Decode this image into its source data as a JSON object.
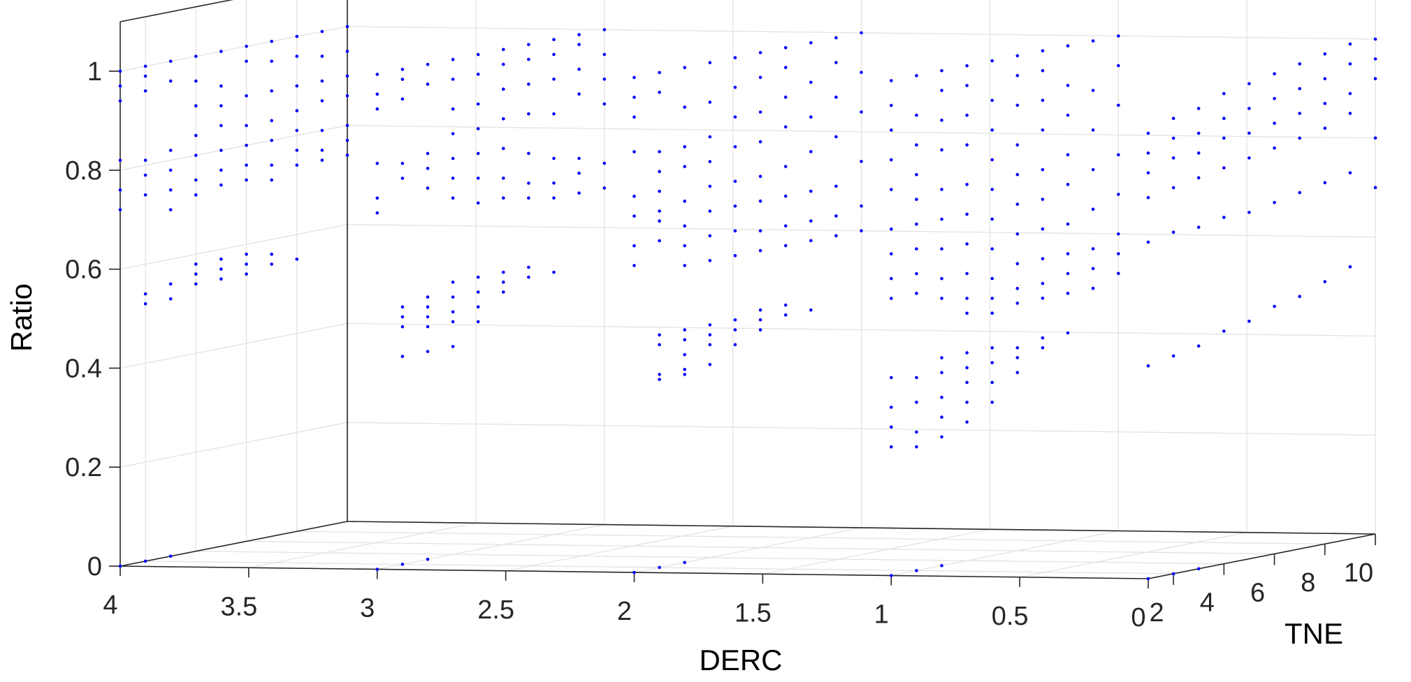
{
  "chart_data": {
    "type": "scatter3d",
    "title": "",
    "xlabel": "DERC",
    "ylabel": "TNE",
    "zlabel": "Ratio",
    "xlim": [
      0,
      4
    ],
    "ylim": [
      1,
      10
    ],
    "zlim": [
      0,
      1.1
    ],
    "x_ticks": [
      "0",
      "0.5",
      "1",
      "1.5",
      "2",
      "2.5",
      "3",
      "3.5",
      "4"
    ],
    "y_ticks": [
      "2",
      "4",
      "6",
      "8",
      "10"
    ],
    "z_ticks": [
      "0",
      "0.2",
      "0.4",
      "0.6",
      "0.8",
      "1"
    ],
    "marker_color": "#0000ff",
    "grid": true,
    "groups": [
      {
        "derc": 4,
        "zero_tne": [
          1,
          2,
          3
        ],
        "columns": [
          {
            "tne": 1,
            "z": [
              0.72,
              0.76,
              0.82,
              0.94,
              0.97,
              1.0
            ]
          },
          {
            "tne": 2,
            "z": [
              0.52,
              0.54,
              0.74,
              0.78,
              0.81,
              0.95,
              0.98,
              1.0
            ]
          },
          {
            "tne": 3,
            "z": [
              0.52,
              0.55,
              0.7,
              0.74,
              0.78,
              0.82,
              0.96,
              1.0
            ]
          },
          {
            "tne": 4,
            "z": [
              0.54,
              0.56,
              0.58,
              0.72,
              0.75,
              0.8,
              0.84,
              0.9,
              0.95,
              1.0
            ]
          },
          {
            "tne": 5,
            "z": [
              0.54,
              0.56,
              0.58,
              0.73,
              0.76,
              0.8,
              0.85,
              0.89,
              0.93,
              1.0
            ]
          },
          {
            "tne": 6,
            "z": [
              0.54,
              0.56,
              0.58,
              0.73,
              0.76,
              0.8,
              0.84,
              0.9,
              0.97,
              1.0
            ]
          },
          {
            "tne": 7,
            "z": [
              0.55,
              0.57,
              0.72,
              0.75,
              0.8,
              0.84,
              0.9,
              0.96,
              1.0
            ]
          },
          {
            "tne": 8,
            "z": [
              0.55,
              0.74,
              0.77,
              0.81,
              0.85,
              0.9,
              0.96,
              1.0
            ]
          },
          {
            "tne": 9,
            "z": [
              0.74,
              0.76,
              0.8,
              0.86,
              0.9,
              0.95,
              1.0
            ]
          },
          {
            "tne": 10,
            "z": [
              0.74,
              0.77,
              0.8,
              0.86,
              0.9,
              0.95,
              1.0
            ]
          }
        ]
      },
      {
        "derc": 3,
        "zero_tne": [
          1,
          2,
          3
        ],
        "columns": [
          {
            "tne": 1,
            "z": [
              0.72,
              0.75,
              0.82,
              0.93,
              0.96,
              1.0
            ]
          },
          {
            "tne": 2,
            "z": [
              0.42,
              0.48,
              0.5,
              0.52,
              0.78,
              0.81,
              0.94,
              0.98,
              1.0
            ]
          },
          {
            "tne": 3,
            "z": [
              0.42,
              0.47,
              0.49,
              0.51,
              0.53,
              0.75,
              0.79,
              0.82,
              0.96,
              1.0
            ]
          },
          {
            "tne": 4,
            "z": [
              0.42,
              0.47,
              0.49,
              0.52,
              0.55,
              0.72,
              0.76,
              0.8,
              0.85,
              0.9,
              0.96,
              1.0
            ]
          },
          {
            "tne": 5,
            "z": [
              0.46,
              0.49,
              0.52,
              0.55,
              0.7,
              0.75,
              0.8,
              0.85,
              0.9,
              0.96,
              1.0
            ]
          },
          {
            "tne": 6,
            "z": [
              0.51,
              0.53,
              0.55,
              0.7,
              0.74,
              0.8,
              0.86,
              0.92,
              0.97,
              1.0
            ]
          },
          {
            "tne": 7,
            "z": [
              0.53,
              0.55,
              0.69,
              0.72,
              0.78,
              0.86,
              0.92,
              0.97,
              1.0
            ]
          },
          {
            "tne": 8,
            "z": [
              0.53,
              0.68,
              0.71,
              0.76,
              0.85,
              0.92,
              0.97,
              1.0
            ]
          },
          {
            "tne": 9,
            "z": [
              0.68,
              0.72,
              0.75,
              0.88,
              0.93,
              0.98,
              1.0
            ]
          },
          {
            "tne": 10,
            "z": [
              0.68,
              0.73,
              0.85,
              0.9,
              0.95,
              1.0
            ]
          }
        ]
      },
      {
        "derc": 2,
        "zero_tne": [
          1,
          2,
          3
        ],
        "columns": [
          {
            "tne": 1,
            "z": [
              0.62,
              0.66,
              0.72,
              0.76,
              0.85,
              0.92,
              0.96,
              1.0
            ]
          },
          {
            "tne": 2,
            "z": [
              0.38,
              0.39,
              0.45,
              0.47,
              0.66,
              0.7,
              0.72,
              0.76,
              0.8,
              0.84,
              0.96,
              1.0
            ]
          },
          {
            "tne": 3,
            "z": [
              0.38,
              0.39,
              0.42,
              0.45,
              0.47,
              0.6,
              0.64,
              0.68,
              0.73,
              0.8,
              0.84,
              0.92,
              1.0
            ]
          },
          {
            "tne": 4,
            "z": [
              0.39,
              0.43,
              0.45,
              0.47,
              0.6,
              0.65,
              0.7,
              0.75,
              0.8,
              0.85,
              0.92,
              1.0
            ]
          },
          {
            "tne": 5,
            "z": [
              0.42,
              0.45,
              0.47,
              0.6,
              0.65,
              0.7,
              0.75,
              0.82,
              0.88,
              0.94,
              1.0
            ]
          },
          {
            "tne": 6,
            "z": [
              0.44,
              0.46,
              0.48,
              0.6,
              0.64,
              0.7,
              0.75,
              0.82,
              0.88,
              0.95,
              1.0
            ]
          },
          {
            "tne": 7,
            "z": [
              0.46,
              0.48,
              0.6,
              0.64,
              0.7,
              0.76,
              0.84,
              0.9,
              0.96,
              1.0
            ]
          },
          {
            "tne": 8,
            "z": [
              0.46,
              0.6,
              0.64,
              0.7,
              0.78,
              0.85,
              0.92,
              1.0
            ]
          },
          {
            "tne": 9,
            "z": [
              0.6,
              0.64,
              0.7,
              0.8,
              0.88,
              0.95,
              1.0
            ]
          },
          {
            "tne": 10,
            "z": [
              0.6,
              0.65,
              0.74,
              0.84,
              0.92,
              1.0
            ]
          }
        ]
      },
      {
        "derc": 1,
        "zero_tne": [
          1,
          2,
          3
        ],
        "columns": [
          {
            "tne": 1,
            "z": [
              0.26,
              0.3,
              0.34,
              0.4,
              0.56,
              0.6,
              0.65,
              0.7,
              0.78,
              0.84,
              0.9,
              0.95,
              1.0
            ]
          },
          {
            "tne": 2,
            "z": [
              0.25,
              0.28,
              0.34,
              0.39,
              0.56,
              0.6,
              0.65,
              0.7,
              0.75,
              0.8,
              0.86,
              0.92,
              1.0
            ]
          },
          {
            "tne": 3,
            "z": [
              0.26,
              0.3,
              0.34,
              0.39,
              0.42,
              0.54,
              0.58,
              0.64,
              0.7,
              0.76,
              0.84,
              0.9,
              0.96,
              1.0
            ]
          },
          {
            "tne": 4,
            "z": [
              0.28,
              0.32,
              0.36,
              0.39,
              0.42,
              0.5,
              0.53,
              0.58,
              0.64,
              0.7,
              0.76,
              0.84,
              0.9,
              0.96,
              1.0
            ]
          },
          {
            "tne": 5,
            "z": [
              0.31,
              0.35,
              0.39,
              0.42,
              0.49,
              0.52,
              0.56,
              0.62,
              0.68,
              0.74,
              0.8,
              0.86,
              0.92,
              1.0
            ]
          },
          {
            "tne": 6,
            "z": [
              0.36,
              0.39,
              0.41,
              0.5,
              0.53,
              0.58,
              0.64,
              0.7,
              0.76,
              0.82,
              0.9,
              0.96,
              1.0
            ]
          },
          {
            "tne": 7,
            "z": [
              0.4,
              0.42,
              0.5,
              0.53,
              0.58,
              0.64,
              0.7,
              0.76,
              0.84,
              0.9,
              0.96,
              1.0
            ]
          },
          {
            "tne": 8,
            "z": [
              0.42,
              0.5,
              0.54,
              0.58,
              0.64,
              0.72,
              0.78,
              0.86,
              0.92,
              1.0
            ]
          },
          {
            "tne": 9,
            "z": [
              0.5,
              0.54,
              0.58,
              0.66,
              0.74,
              0.82,
              0.9,
              1.0
            ]
          },
          {
            "tne": 10,
            "z": [
              0.52,
              0.56,
              0.6,
              0.68,
              0.76,
              0.86,
              0.94,
              1.0
            ]
          }
        ]
      },
      {
        "derc": 0,
        "zero_tne": [
          1,
          2,
          3
        ],
        "columns": [
          {
            "tne": 1,
            "z": [
              0.43,
              0.68,
              0.77,
              0.82,
              0.86,
              0.9
            ]
          },
          {
            "tne": 2,
            "z": [
              0.44,
              0.69,
              0.78,
              0.84,
              0.88,
              0.92
            ]
          },
          {
            "tne": 3,
            "z": [
              0.45,
              0.69,
              0.79,
              0.84,
              0.88,
              0.93
            ]
          },
          {
            "tne": 4,
            "z": [
              0.47,
              0.7,
              0.8,
              0.86,
              0.9,
              0.95
            ]
          },
          {
            "tne": 5,
            "z": [
              0.48,
              0.7,
              0.81,
              0.86,
              0.91,
              0.96
            ]
          },
          {
            "tne": 6,
            "z": [
              0.5,
              0.71,
              0.82,
              0.87,
              0.92,
              0.97
            ]
          },
          {
            "tne": 7,
            "z": [
              0.51,
              0.72,
              0.83,
              0.88,
              0.93,
              0.98
            ]
          },
          {
            "tne": 8,
            "z": [
              0.53,
              0.73,
              0.84,
              0.89,
              0.94,
              0.99
            ]
          },
          {
            "tne": 9,
            "z": [
              0.55,
              0.74,
              0.86,
              0.9,
              0.96,
              1.0
            ]
          },
          {
            "tne": 10,
            "z": [
              0.7,
              0.8,
              0.92,
              0.96,
              1.0
            ]
          }
        ]
      }
    ]
  }
}
